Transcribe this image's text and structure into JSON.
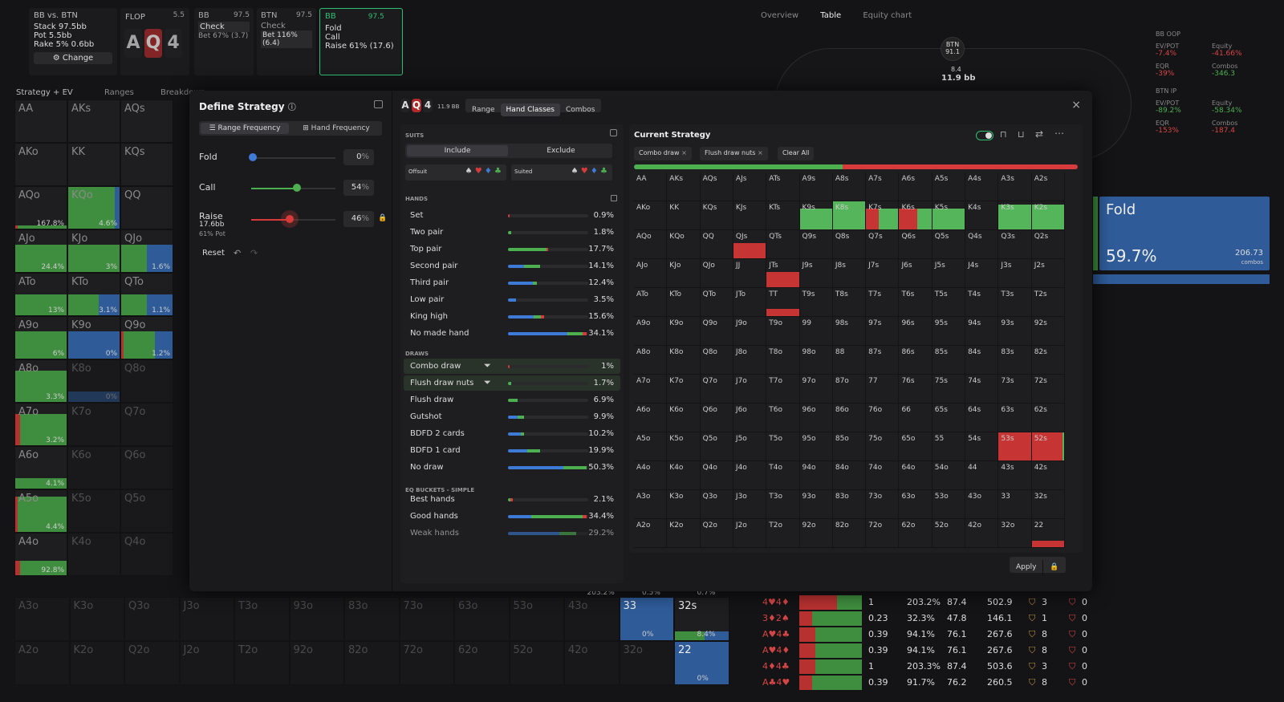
{
  "header": {
    "matchup": "BB vs. BTN",
    "stack": "Stack 97.5bb",
    "pot": "Pot 5.5bb",
    "rake": "Rake 5% 0.6bb",
    "change_label": "Change",
    "flop_label": "FLOP",
    "flop_value": "5.5",
    "flop_cards": [
      "A",
      "Q",
      "4"
    ],
    "actions": [
      {
        "player": "BB",
        "stack": "97.5",
        "lines": [
          "Check",
          "Bet 67% (3.7)"
        ]
      },
      {
        "player": "BTN",
        "stack": "97.5",
        "lines": [
          "Check",
          "Bet 116% (6.4)"
        ]
      },
      {
        "player": "BB",
        "stack": "97.5",
        "lines": [
          "Fold",
          "Call",
          "Raise 61% (17.6)"
        ]
      }
    ]
  },
  "left_tabs": [
    "Strategy + EV",
    "Ranges",
    "Breakdown"
  ],
  "right_tabs": [
    "Overview",
    "Table",
    "Equity chart"
  ],
  "table_view": {
    "btn_label": "BTN",
    "btn_stack": "91.1",
    "btn_bet": "8.4",
    "pot": "11.9 bb",
    "bb_header": "BB OOP",
    "bb_stats": [
      {
        "k": "EV/POT",
        "v": "-7.4%"
      },
      {
        "k": "Equity",
        "v": "-41.66%"
      },
      {
        "k": "EQR",
        "v": "-39%"
      },
      {
        "k": "Combos",
        "v": "-346.3"
      }
    ],
    "btn_header": "BTN IP",
    "btn_stats": [
      {
        "k": "EV/POT",
        "v": "-89.2%"
      },
      {
        "k": "Equity",
        "v": "-58.34%"
      },
      {
        "k": "EQR",
        "v": "-153%"
      },
      {
        "k": "Combos",
        "v": "-187.4"
      }
    ],
    "fold_label": "Fold",
    "fold_pct": "59.7%",
    "fold_combos": "206.73",
    "fold_combos_label": "combos"
  },
  "bg_grid": {
    "rows": [
      [
        "AA",
        "AKs",
        "AQs"
      ],
      [
        "AKo",
        "KK",
        "KQs"
      ],
      [
        "AQo",
        "KQo",
        "QQ"
      ],
      [
        "AJo",
        "KJo",
        "QJo"
      ],
      [
        "ATo",
        "KTo",
        "QTo"
      ],
      [
        "A9o",
        "K9o",
        "Q9o"
      ],
      [
        "A8o",
        "K8o",
        "Q8o"
      ],
      [
        "A7o",
        "K7o",
        "Q7o"
      ],
      [
        "A6o",
        "K6o",
        "Q6o"
      ],
      [
        "A5o",
        "K5o",
        "Q5o"
      ],
      [
        "A4o",
        "K4o",
        "Q4o"
      ]
    ],
    "vals": [
      "167.8%",
      "4.6%",
      "24.4%",
      "3%",
      "1.6%",
      "13%",
      "3.1%",
      "1.1%",
      "6%",
      "0%",
      "1.2%",
      "3.3%",
      "0%",
      "3.2%",
      "4.1%",
      "4.4%",
      "92.8%"
    ],
    "bottom_row1": [
      "A3o",
      "K3o",
      "Q3o",
      "J3o",
      "T3o",
      "93o",
      "83o",
      "73o",
      "63o",
      "53o",
      "43o",
      "33",
      "32s"
    ],
    "bottom_row2": [
      "A2o",
      "K2o",
      "Q2o",
      "J2o",
      "T2o",
      "92o",
      "82o",
      "72o",
      "62o",
      "52o",
      "42o",
      "32o",
      "22"
    ],
    "bottom_vals": [
      "203.2%",
      "0.5%",
      "0.7%",
      "0%",
      "8.4%",
      "0%"
    ]
  },
  "bg_table": [
    {
      "hand": "4♥4♦",
      "a": "1",
      "b": "203.2%",
      "c": "87.4",
      "d": "502.9",
      "e": "3",
      "f": "0"
    },
    {
      "hand": "3♦2♠",
      "a": "0.23",
      "b": "32.3%",
      "c": "47.8",
      "d": "146.1",
      "e": "1",
      "f": "0"
    },
    {
      "hand": "A♥4♣",
      "a": "0.39",
      "b": "94.1%",
      "c": "76.1",
      "d": "267.6",
      "e": "8",
      "f": "0"
    },
    {
      "hand": "A♥4♦",
      "a": "0.39",
      "b": "94.1%",
      "c": "76.1",
      "d": "267.6",
      "e": "8",
      "f": "0"
    },
    {
      "hand": "4♦4♣",
      "a": "1",
      "b": "203.3%",
      "c": "87.4",
      "d": "503.6",
      "e": "3",
      "f": "0"
    },
    {
      "hand": "A♣4♥",
      "a": "0.39",
      "b": "91.7%",
      "c": "76.2",
      "d": "260.5",
      "e": "8",
      "f": "0"
    }
  ],
  "dialog": {
    "title": "Define Strategy",
    "freq_tabs": [
      "Range Frequency",
      "Hand Frequency"
    ],
    "sliders": [
      {
        "label": "Fold",
        "value": "0",
        "unit": "%",
        "color": "#3d7bd6",
        "pos": 0
      },
      {
        "label": "Call",
        "value": "54",
        "unit": "%",
        "color": "#4caf50",
        "pos": 0.54
      },
      {
        "label": "Raise",
        "sub1": "17.6bb",
        "sub2": "61% Pot",
        "value": "46",
        "unit": "%",
        "color": "#d63a3a",
        "pos": 0.46
      }
    ],
    "reset_label": "Reset",
    "board": [
      "A",
      "Q",
      "4"
    ],
    "pot": "11.9 BB",
    "view_tabs": [
      "Range",
      "Hand Classes",
      "Combos"
    ],
    "suits_label": "SUITS",
    "include_label": "Include",
    "exclude_label": "Exclude",
    "offsuit_label": "Offsuit",
    "suited_label": "Suited",
    "hands_label": "HANDS",
    "draws_label": "DRAWS",
    "eq_label": "EQ BUCKETS - SIMPLE",
    "hands": [
      {
        "name": "Set",
        "val": "0.9%",
        "frac": 0.02,
        "mix": [
          0,
          0,
          1
        ]
      },
      {
        "name": "Two pair",
        "val": "1.8%",
        "frac": 0.04,
        "mix": [
          0,
          1,
          0
        ]
      },
      {
        "name": "Top pair",
        "val": "17.7%",
        "frac": 0.5,
        "mix": [
          0,
          0.95,
          0.05
        ]
      },
      {
        "name": "Second pair",
        "val": "14.1%",
        "frac": 0.4,
        "mix": [
          0.5,
          0.5,
          0
        ]
      },
      {
        "name": "Third pair",
        "val": "12.4%",
        "frac": 0.36,
        "mix": [
          0.85,
          0.15,
          0
        ]
      },
      {
        "name": "Low pair",
        "val": "3.5%",
        "frac": 0.1,
        "mix": [
          1,
          0,
          0
        ]
      },
      {
        "name": "King high",
        "val": "15.6%",
        "frac": 0.45,
        "mix": [
          0.7,
          0.2,
          0.1
        ]
      },
      {
        "name": "No made hand",
        "val": "34.1%",
        "frac": 0.98,
        "mix": [
          0.75,
          0.2,
          0.05
        ]
      }
    ],
    "draws": [
      {
        "name": "Combo draw",
        "val": "1%",
        "frac": 0.02,
        "mix": [
          0,
          0,
          1
        ],
        "filter": true
      },
      {
        "name": "Flush draw nuts",
        "val": "1.7%",
        "frac": 0.04,
        "mix": [
          0,
          1,
          0
        ],
        "filter": true
      },
      {
        "name": "Flush draw",
        "val": "6.9%",
        "frac": 0.12,
        "mix": [
          0,
          1,
          0
        ]
      },
      {
        "name": "Gutshot",
        "val": "9.9%",
        "frac": 0.2,
        "mix": [
          0.6,
          0.4,
          0
        ]
      },
      {
        "name": "BDFD 2 cards",
        "val": "10.2%",
        "frac": 0.2,
        "mix": [
          0.8,
          0.2,
          0
        ]
      },
      {
        "name": "BDFD 1 card",
        "val": "19.9%",
        "frac": 0.4,
        "mix": [
          0.6,
          0.4,
          0
        ]
      },
      {
        "name": "No draw",
        "val": "50.3%",
        "frac": 0.98,
        "mix": [
          0.7,
          0.3,
          0
        ]
      }
    ],
    "eq": [
      {
        "name": "Best hands",
        "val": "2.1%",
        "frac": 0.06,
        "mix": [
          0,
          0.5,
          0.5
        ]
      },
      {
        "name": "Good hands",
        "val": "34.4%",
        "frac": 0.98,
        "mix": [
          0.3,
          0.65,
          0.05
        ]
      },
      {
        "name": "Weak hands",
        "val": "29.2%",
        "frac": 0.85,
        "mix": [
          0.75,
          0.25,
          0
        ]
      }
    ],
    "current_strategy": "Current Strategy",
    "chips": [
      "Combo draw",
      "Flush draw nuts"
    ],
    "clear_all": "Clear All",
    "apply": "Apply",
    "strategy_bar": {
      "call": 0.47,
      "raise": 0.53
    }
  },
  "matrix": {
    "ranks": [
      "A",
      "K",
      "Q",
      "J",
      "T",
      "9",
      "8",
      "7",
      "6",
      "5",
      "4",
      "3",
      "2"
    ],
    "fills": {
      "QJs": [
        [
          "r",
          1,
          0.55
        ]
      ],
      "JTs": [
        [
          "r",
          1,
          0.55
        ]
      ],
      "K9s": [
        [
          "g",
          1,
          0.75
        ]
      ],
      "K8s": [
        [
          "g",
          1,
          1
        ]
      ],
      "K7s": [
        [
          "r",
          0.4,
          0.75
        ],
        [
          "g",
          0.6,
          0.75
        ]
      ],
      "K6s": [
        [
          "r",
          0.55,
          0.75
        ],
        [
          "g",
          0.45,
          0.75
        ]
      ],
      "K5s": [
        [
          "g",
          1,
          0.75
        ]
      ],
      "K3s": [
        [
          "g",
          1,
          0.9
        ]
      ],
      "K2s": [
        [
          "g",
          1,
          0.9
        ]
      ],
      "TT": [
        [
          "r",
          1,
          0.25
        ]
      ],
      "53s": [
        [
          "r",
          1,
          1
        ]
      ],
      "52s": [
        [
          "r",
          0.95,
          1
        ],
        [
          "g",
          0.05,
          1
        ]
      ],
      "22": [
        [
          "r",
          1,
          0.22
        ]
      ]
    }
  },
  "colors": {
    "call": "#4caf50",
    "raise": "#d63a3a",
    "fold": "#3d7bd6",
    "accent": "#2fbf71"
  }
}
